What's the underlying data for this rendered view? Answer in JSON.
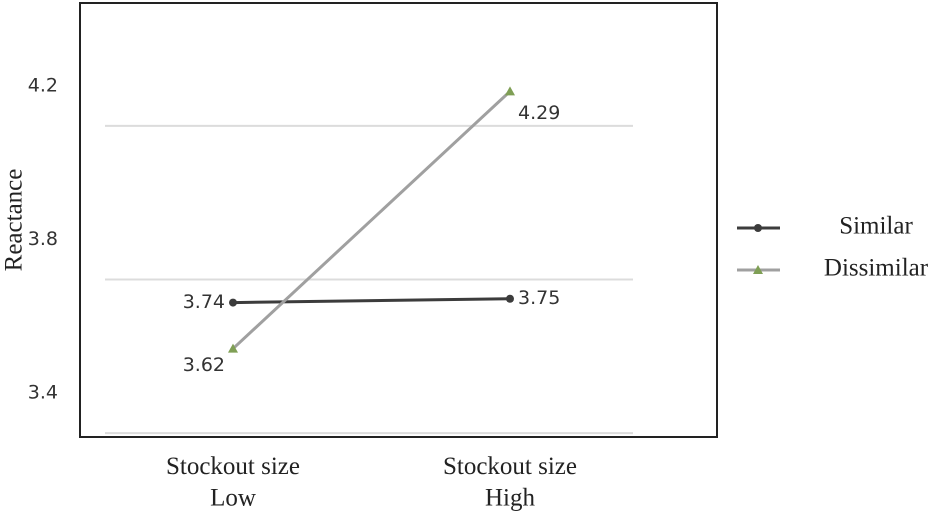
{
  "chart_data": {
    "type": "line",
    "y_label": "Reactance",
    "categories": [
      "Stockout size\nLow",
      "Stockout size\nHigh"
    ],
    "series": [
      {
        "name": "Similar",
        "color": "#3c3c3c",
        "marker_color": "#3c3c3c",
        "marker": "circle",
        "values": [
          3.74,
          3.75
        ]
      },
      {
        "name": "Dissimilar",
        "color": "#a0a0a0",
        "marker_color": "#7f9f55",
        "marker": "triangle",
        "values": [
          3.62,
          4.29
        ]
      }
    ],
    "ylim": [
      3.39,
      4.52
    ],
    "yticks": [
      3.4,
      3.8,
      4.2
    ],
    "grid": true,
    "legend": "right"
  }
}
